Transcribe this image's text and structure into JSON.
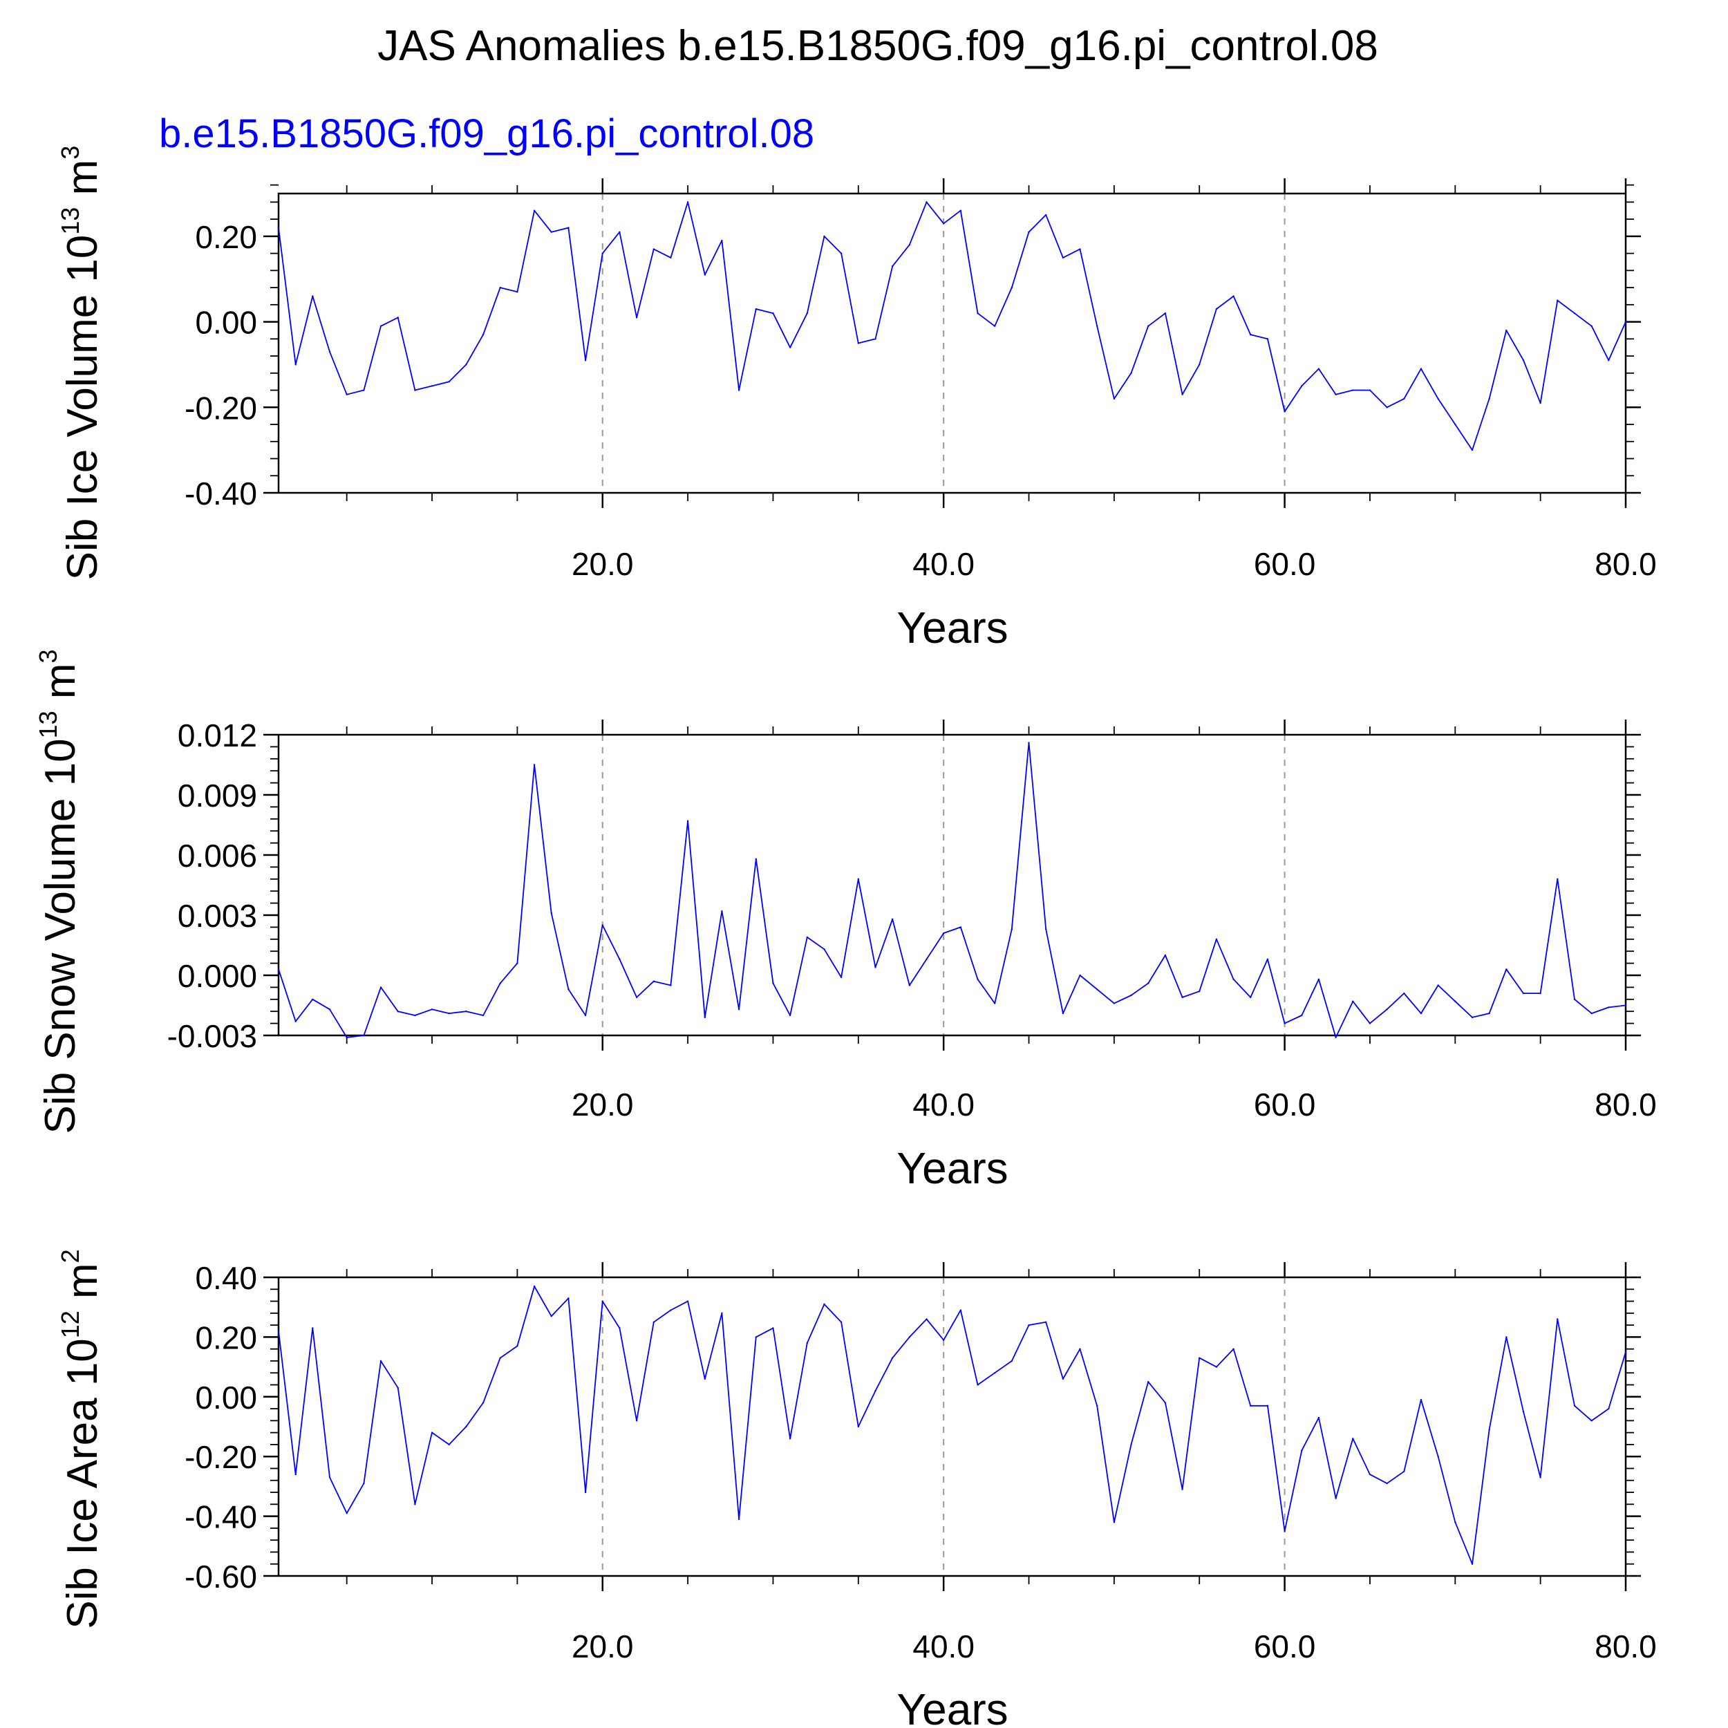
{
  "title": "JAS Anomalies b.e15.B1850G.f09_g16.pi_control.08",
  "run_label": "b.e15.B1850G.f09_g16.pi_control.08",
  "colors": {
    "series": "#0000ff",
    "axes": "#000000",
    "gridline": "#999999",
    "run_label": "#0000ff"
  },
  "chart_data": [
    {
      "type": "line",
      "title": "",
      "subtitle": "b.e15.B1850G.f09_g16.pi_control.08",
      "xlabel": "Years",
      "ylabel": "Sib Ice Volume 10",
      "ylabel_exp": "13",
      "ylabel_unit": "m",
      "ylabel_unit_exp": "3",
      "xlim": [
        1,
        80
      ],
      "ylim": [
        -0.4,
        0.3
      ],
      "xticks": [
        20,
        40,
        60,
        80
      ],
      "xtick_labels": [
        "20.0",
        "40.0",
        "60.0",
        "80.0"
      ],
      "yticks": [
        -0.4,
        -0.2,
        0.0,
        0.2
      ],
      "ytick_labels": [
        "-0.40",
        "-0.20",
        "0.00",
        "0.20"
      ],
      "vgrid": [
        20,
        40,
        60
      ],
      "grid": "dashed vertical at 20, 40, 60",
      "series": [
        {
          "x": [
            1,
            2,
            3,
            4,
            5,
            6,
            7,
            8,
            9,
            10,
            11,
            12,
            13,
            14,
            15,
            16,
            17,
            18,
            19,
            20,
            21,
            22,
            23,
            24,
            25,
            26,
            27,
            28,
            29,
            30,
            31,
            32,
            33,
            34,
            35,
            36,
            37,
            38,
            39,
            40,
            41,
            42,
            43,
            44,
            45,
            46,
            47,
            48,
            49,
            50,
            51,
            52,
            53,
            54,
            55,
            56,
            57,
            58,
            59,
            60,
            61,
            62,
            63,
            64,
            65,
            66,
            67,
            68,
            69,
            70,
            71,
            72,
            73,
            74,
            75,
            76,
            77,
            78,
            79,
            80
          ],
          "values": [
            0.22,
            -0.1,
            0.06,
            -0.07,
            -0.17,
            -0.16,
            -0.01,
            0.01,
            -0.16,
            -0.15,
            -0.14,
            -0.1,
            -0.03,
            0.08,
            0.07,
            0.26,
            0.21,
            0.22,
            -0.09,
            0.16,
            0.21,
            0.01,
            0.17,
            0.15,
            0.28,
            0.11,
            0.19,
            -0.16,
            0.03,
            0.02,
            -0.06,
            0.02,
            0.2,
            0.16,
            -0.05,
            -0.04,
            0.13,
            0.18,
            0.28,
            0.23,
            0.26,
            0.02,
            -0.01,
            0.08,
            0.21,
            0.25,
            0.15,
            0.17,
            -0.01,
            -0.18,
            -0.12,
            -0.01,
            0.02,
            -0.17,
            -0.1,
            0.03,
            0.06,
            -0.03,
            -0.04,
            -0.21,
            -0.15,
            -0.11,
            -0.17,
            -0.16,
            -0.16,
            -0.2,
            -0.18,
            -0.11,
            -0.18,
            -0.24,
            -0.3,
            -0.18,
            -0.02,
            -0.09,
            -0.19,
            0.05,
            0.02,
            -0.01,
            -0.09,
            0.0
          ]
        }
      ]
    },
    {
      "type": "line",
      "title": "",
      "xlabel": "Years",
      "ylabel": "Sib Snow Volume 10",
      "ylabel_exp": "13",
      "ylabel_unit": "m",
      "ylabel_unit_exp": "3",
      "xlim": [
        1,
        80
      ],
      "ylim": [
        -0.003,
        0.012
      ],
      "xticks": [
        20,
        40,
        60,
        80
      ],
      "xtick_labels": [
        "20.0",
        "40.0",
        "60.0",
        "80.0"
      ],
      "yticks": [
        -0.003,
        0.0,
        0.003,
        0.006,
        0.009,
        0.012
      ],
      "ytick_labels": [
        "-0.003",
        "0.000",
        "0.003",
        "0.006",
        "0.009",
        "0.012"
      ],
      "vgrid": [
        20,
        40,
        60
      ],
      "grid": "dashed vertical at 20, 40, 60",
      "series": [
        {
          "x": [
            1,
            2,
            3,
            4,
            5,
            6,
            7,
            8,
            9,
            10,
            11,
            12,
            13,
            14,
            15,
            16,
            17,
            18,
            19,
            20,
            21,
            22,
            23,
            24,
            25,
            26,
            27,
            28,
            29,
            30,
            31,
            32,
            33,
            34,
            35,
            36,
            37,
            38,
            39,
            40,
            41,
            42,
            43,
            44,
            45,
            46,
            47,
            48,
            49,
            50,
            51,
            52,
            53,
            54,
            55,
            56,
            57,
            58,
            59,
            60,
            61,
            62,
            63,
            64,
            65,
            66,
            67,
            68,
            69,
            70,
            71,
            72,
            73,
            74,
            75,
            76,
            77,
            78,
            79,
            80
          ],
          "values": [
            0.0003,
            -0.0023,
            -0.0012,
            -0.0017,
            -0.0031,
            -0.003,
            -0.0006,
            -0.0018,
            -0.002,
            -0.0017,
            -0.0019,
            -0.0018,
            -0.002,
            -0.0004,
            0.0006,
            0.0105,
            0.0031,
            -0.0007,
            -0.002,
            0.0025,
            0.0008,
            -0.0011,
            -0.0003,
            -0.0005,
            0.0077,
            -0.0021,
            0.0032,
            -0.0017,
            0.0058,
            -0.0004,
            -0.002,
            0.0019,
            0.0013,
            -0.0001,
            0.0048,
            0.0004,
            0.0028,
            -0.0005,
            0.0008,
            0.0021,
            0.0024,
            -0.0002,
            -0.0014,
            0.0023,
            0.0116,
            0.0023,
            -0.0019,
            0.0,
            -0.0007,
            -0.0014,
            -0.001,
            -0.0004,
            0.001,
            -0.0011,
            -0.0008,
            0.0018,
            -0.0002,
            -0.0011,
            0.0008,
            -0.0024,
            -0.002,
            -0.0002,
            -0.0031,
            -0.0013,
            -0.0024,
            -0.0017,
            -0.0009,
            -0.0019,
            -0.0005,
            -0.0013,
            -0.0021,
            -0.0019,
            0.0003,
            -0.0009,
            -0.0009,
            0.0048,
            -0.0012,
            -0.0019,
            -0.0016,
            -0.0015
          ]
        }
      ]
    },
    {
      "type": "line",
      "title": "",
      "xlabel": "Years",
      "ylabel": "Sib Ice Area 10",
      "ylabel_exp": "12",
      "ylabel_unit": "m",
      "ylabel_unit_exp": "2",
      "xlim": [
        1,
        80
      ],
      "ylim": [
        -0.6,
        0.4
      ],
      "xticks": [
        20,
        40,
        60,
        80
      ],
      "xtick_labels": [
        "20.0",
        "40.0",
        "60.0",
        "80.0"
      ],
      "yticks": [
        -0.6,
        -0.4,
        -0.2,
        0.0,
        0.2,
        0.4
      ],
      "ytick_labels": [
        "-0.60",
        "-0.40",
        "-0.20",
        "0.00",
        "0.20",
        "0.40"
      ],
      "vgrid": [
        20,
        40,
        60
      ],
      "grid": "dashed vertical at 20, 40, 60",
      "series": [
        {
          "x": [
            1,
            2,
            3,
            4,
            5,
            6,
            7,
            8,
            9,
            10,
            11,
            12,
            13,
            14,
            15,
            16,
            17,
            18,
            19,
            20,
            21,
            22,
            23,
            24,
            25,
            26,
            27,
            28,
            29,
            30,
            31,
            32,
            33,
            34,
            35,
            36,
            37,
            38,
            39,
            40,
            41,
            42,
            43,
            44,
            45,
            46,
            47,
            48,
            49,
            50,
            51,
            52,
            53,
            54,
            55,
            56,
            57,
            58,
            59,
            60,
            61,
            62,
            63,
            64,
            65,
            66,
            67,
            68,
            69,
            70,
            71,
            72,
            73,
            74,
            75,
            76,
            77,
            78,
            79,
            80
          ],
          "values": [
            0.22,
            -0.26,
            0.23,
            -0.27,
            -0.39,
            -0.29,
            0.12,
            0.03,
            -0.36,
            -0.12,
            -0.16,
            -0.1,
            -0.02,
            0.13,
            0.17,
            0.37,
            0.27,
            0.33,
            -0.32,
            0.32,
            0.23,
            -0.08,
            0.25,
            0.29,
            0.32,
            0.06,
            0.28,
            -0.41,
            0.2,
            0.23,
            -0.14,
            0.18,
            0.31,
            0.25,
            -0.1,
            0.02,
            0.13,
            0.2,
            0.26,
            0.19,
            0.29,
            0.04,
            0.08,
            0.12,
            0.24,
            0.25,
            0.06,
            0.16,
            -0.03,
            -0.42,
            -0.16,
            0.05,
            -0.02,
            -0.31,
            0.13,
            0.1,
            0.16,
            -0.03,
            -0.03,
            -0.45,
            -0.18,
            -0.07,
            -0.34,
            -0.14,
            -0.26,
            -0.29,
            -0.25,
            -0.01,
            -0.2,
            -0.42,
            -0.56,
            -0.11,
            0.2,
            -0.05,
            -0.27,
            0.26,
            -0.03,
            -0.08,
            -0.04,
            0.15
          ]
        }
      ]
    }
  ]
}
